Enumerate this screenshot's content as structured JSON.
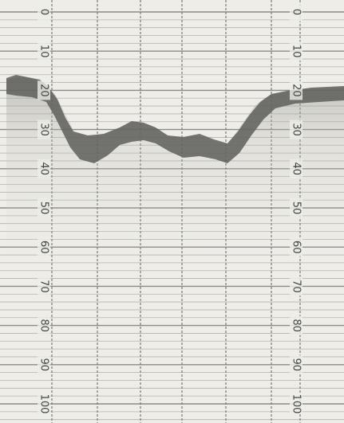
{
  "depth_scale": {
    "left": [
      0,
      10,
      20,
      30,
      40,
      50,
      60,
      70,
      80,
      90,
      100
    ],
    "right": [
      0,
      10,
      20,
      30,
      40,
      50,
      60,
      70,
      80,
      90,
      100
    ]
  }
}
